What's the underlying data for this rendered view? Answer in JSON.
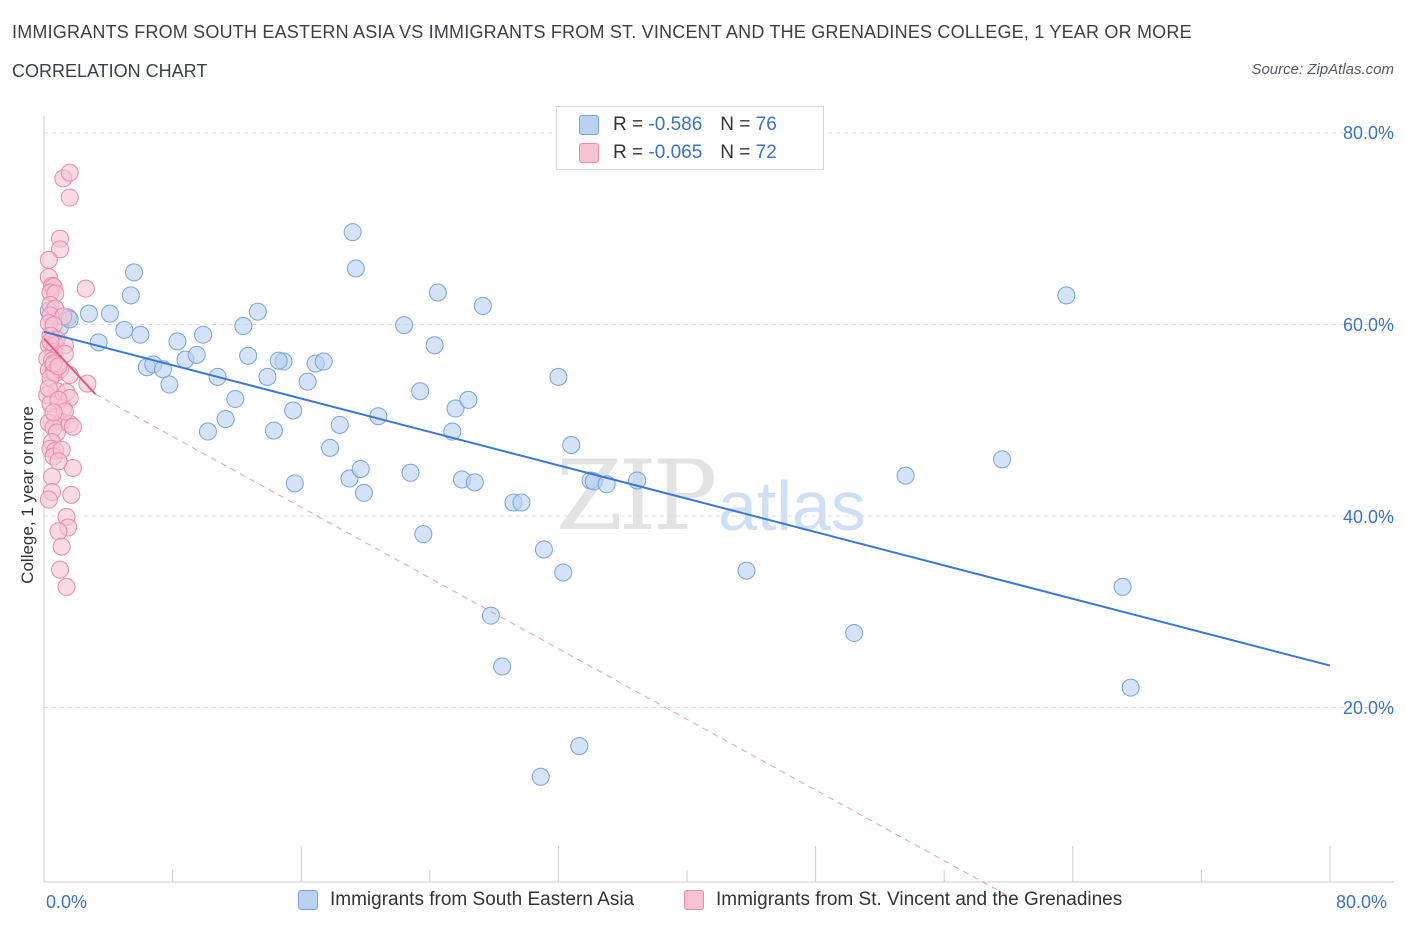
{
  "header": {
    "title": "IMMIGRANTS FROM SOUTH EASTERN ASIA VS IMMIGRANTS FROM ST. VINCENT AND THE GRENADINES COLLEGE, 1 YEAR OR MORE",
    "subtitle": "CORRELATION CHART",
    "source": "Source: ZipAtlas.com"
  },
  "watermark": {
    "part1": "ZIP",
    "part2": "atlas"
  },
  "colors": {
    "blue_fill": "#b9d1f3",
    "blue_stroke": "#7aa3dc",
    "blue_line": "#3a78cf",
    "pink_fill": "#f7c3d3",
    "pink_stroke": "#ea8aaa",
    "pink_line": "#e4578a",
    "grid": "#dddddd",
    "tick_text": "#3a73c6"
  },
  "legend_top": {
    "rows": [
      {
        "r_label": "R =",
        "r_value": "-0.586",
        "n_label": "N =",
        "n_value": "76"
      },
      {
        "r_label": "R =",
        "r_value": "-0.065",
        "n_label": "N =",
        "n_value": "72"
      }
    ]
  },
  "legend_bottom": [
    {
      "label": "Immigrants from South Eastern Asia"
    },
    {
      "label": "Immigrants from St. Vincent and the Grenadines"
    }
  ],
  "chart_data": {
    "type": "scatter",
    "xlabel": "",
    "ylabel": "College, 1 year or more",
    "xlim": [
      0,
      80
    ],
    "ylim": [
      0,
      80
    ],
    "x_tick_labels": [
      "0.0%",
      "80.0%"
    ],
    "y_tick_labels": [
      "80.0%",
      "60.0%",
      "40.0%",
      "20.0%"
    ],
    "y_tick_values": [
      80,
      60,
      40,
      20
    ],
    "grid": true,
    "series": [
      {
        "name": "Immigrants from South Eastern Asia",
        "color": "#b9d1f3",
        "trend": {
          "x0": 0,
          "y0": 59.3,
          "x1": 80,
          "y1": 24.5
        },
        "points": [
          [
            0.3,
            61.5
          ],
          [
            1.0,
            59.8
          ],
          [
            1.5,
            60.8
          ],
          [
            2.8,
            61.2
          ],
          [
            3.4,
            58.2
          ],
          [
            4.1,
            61.2
          ],
          [
            5.0,
            59.5
          ],
          [
            5.4,
            63.1
          ],
          [
            5.6,
            65.5
          ],
          [
            6.0,
            59.0
          ],
          [
            6.4,
            55.6
          ],
          [
            6.8,
            55.9
          ],
          [
            7.4,
            55.4
          ],
          [
            7.8,
            53.8
          ],
          [
            8.3,
            58.3
          ],
          [
            8.8,
            56.4
          ],
          [
            9.5,
            56.9
          ],
          [
            9.9,
            59.0
          ],
          [
            10.2,
            48.9
          ],
          [
            10.8,
            54.6
          ],
          [
            11.3,
            50.2
          ],
          [
            11.9,
            52.3
          ],
          [
            12.4,
            59.9
          ],
          [
            12.7,
            56.8
          ],
          [
            13.3,
            61.4
          ],
          [
            13.9,
            54.6
          ],
          [
            14.3,
            49.0
          ],
          [
            14.9,
            56.2
          ],
          [
            15.5,
            51.1
          ],
          [
            15.6,
            43.5
          ],
          [
            16.4,
            54.1
          ],
          [
            16.9,
            56.0
          ],
          [
            17.4,
            56.2
          ],
          [
            17.8,
            47.2
          ],
          [
            18.4,
            49.6
          ],
          [
            19.0,
            44.0
          ],
          [
            19.2,
            69.7
          ],
          [
            19.4,
            65.9
          ],
          [
            19.9,
            42.5
          ],
          [
            19.7,
            45.0
          ],
          [
            20.8,
            50.5
          ],
          [
            22.4,
            60.0
          ],
          [
            22.8,
            44.6
          ],
          [
            23.4,
            53.1
          ],
          [
            23.6,
            38.2
          ],
          [
            24.3,
            57.9
          ],
          [
            24.5,
            63.4
          ],
          [
            25.4,
            48.9
          ],
          [
            25.6,
            51.3
          ],
          [
            26.0,
            43.9
          ],
          [
            26.4,
            52.2
          ],
          [
            26.8,
            43.6
          ],
          [
            27.3,
            62.0
          ],
          [
            27.8,
            29.7
          ],
          [
            28.5,
            24.4
          ],
          [
            29.2,
            41.5
          ],
          [
            29.7,
            41.5
          ],
          [
            31.1,
            36.6
          ],
          [
            32.0,
            54.6
          ],
          [
            32.3,
            34.2
          ],
          [
            32.8,
            47.5
          ],
          [
            33.3,
            16.1
          ],
          [
            34.0,
            43.8
          ],
          [
            34.2,
            43.7
          ],
          [
            35.0,
            43.4
          ],
          [
            36.9,
            43.8
          ],
          [
            43.7,
            34.4
          ],
          [
            50.4,
            27.9
          ],
          [
            53.6,
            44.3
          ],
          [
            59.6,
            46.0
          ],
          [
            63.6,
            63.1
          ],
          [
            67.1,
            32.7
          ],
          [
            67.6,
            22.2
          ],
          [
            30.9,
            12.9
          ],
          [
            14.6,
            56.3
          ],
          [
            1.6,
            60.6
          ]
        ]
      },
      {
        "name": "Immigrants from St. Vincent and the Grenadines",
        "color": "#f7c3d3",
        "trend": {
          "x0": 0,
          "y0": 58.6,
          "x1": 3.2,
          "y1": 52.8
        },
        "trend_extension": {
          "x0": 3.2,
          "y0": 52.8,
          "x1": 60.5,
          "y1": 0
        },
        "points": [
          [
            1.2,
            75.3
          ],
          [
            1.6,
            75.9
          ],
          [
            1.6,
            73.3
          ],
          [
            1.0,
            69.0
          ],
          [
            1.0,
            67.9
          ],
          [
            0.3,
            66.8
          ],
          [
            0.3,
            65.0
          ],
          [
            0.5,
            64.1
          ],
          [
            0.6,
            64.0
          ],
          [
            0.4,
            63.4
          ],
          [
            0.7,
            63.3
          ],
          [
            2.6,
            63.8
          ],
          [
            0.4,
            62.1
          ],
          [
            0.7,
            61.7
          ],
          [
            0.4,
            61.0
          ],
          [
            1.2,
            60.9
          ],
          [
            0.3,
            60.2
          ],
          [
            0.6,
            60.0
          ],
          [
            0.4,
            58.9
          ],
          [
            0.8,
            58.5
          ],
          [
            0.3,
            57.9
          ],
          [
            0.7,
            57.9
          ],
          [
            1.3,
            57.9
          ],
          [
            0.6,
            57.2
          ],
          [
            1.3,
            57.0
          ],
          [
            0.2,
            56.5
          ],
          [
            0.5,
            56.3
          ],
          [
            0.6,
            55.8
          ],
          [
            0.3,
            55.3
          ],
          [
            0.6,
            55.1
          ],
          [
            0.7,
            55.0
          ],
          [
            1.0,
            55.4
          ],
          [
            0.4,
            54.5
          ],
          [
            1.6,
            54.8
          ],
          [
            2.7,
            53.9
          ],
          [
            0.8,
            53.1
          ],
          [
            1.4,
            53.0
          ],
          [
            0.2,
            52.7
          ],
          [
            1.6,
            52.4
          ],
          [
            0.4,
            51.8
          ],
          [
            1.2,
            51.3
          ],
          [
            0.7,
            50.4
          ],
          [
            0.3,
            49.8
          ],
          [
            1.1,
            49.9
          ],
          [
            0.6,
            49.3
          ],
          [
            0.8,
            48.8
          ],
          [
            1.6,
            49.7
          ],
          [
            1.8,
            49.4
          ],
          [
            0.5,
            47.8
          ],
          [
            0.4,
            47.1
          ],
          [
            0.7,
            46.9
          ],
          [
            0.6,
            46.3
          ],
          [
            1.8,
            45.1
          ],
          [
            0.5,
            44.2
          ],
          [
            0.5,
            42.6
          ],
          [
            1.7,
            42.3
          ],
          [
            0.3,
            41.8
          ],
          [
            1.4,
            40.0
          ],
          [
            1.5,
            38.9
          ],
          [
            0.9,
            38.5
          ],
          [
            1.1,
            36.9
          ],
          [
            1.0,
            34.5
          ],
          [
            1.4,
            32.7
          ],
          [
            0.6,
            56.0
          ],
          [
            0.9,
            55.7
          ],
          [
            0.3,
            53.4
          ],
          [
            0.9,
            52.2
          ],
          [
            1.3,
            51.0
          ],
          [
            0.6,
            50.9
          ],
          [
            1.1,
            47.0
          ],
          [
            0.9,
            45.8
          ],
          [
            0.4,
            58.3
          ]
        ]
      }
    ]
  }
}
